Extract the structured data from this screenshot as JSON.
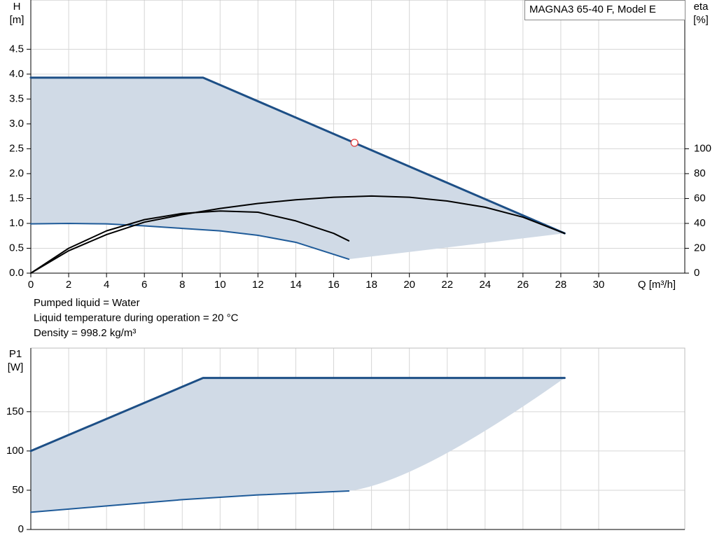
{
  "chart_data": [
    {
      "type": "line",
      "title": "MAGNA3 65-40 F, Model E",
      "ylabel": "H",
      "yunit": "[m]",
      "y2label": "eta",
      "y2unit": "[%]",
      "xlabel": "Q [m³/h]",
      "notes": [
        "Pumped liquid = Water",
        "Liquid temperature during operation = 20 °C",
        "Density = 998.2 kg/m³"
      ],
      "xlim": [
        0,
        34.55
      ],
      "xticks": [
        0,
        2,
        4,
        6,
        8,
        10,
        12,
        14,
        16,
        18,
        20,
        22,
        24,
        26,
        28,
        30
      ],
      "ylim": [
        0,
        5.49
      ],
      "yticks": [
        {
          "value": 0,
          "label": "0.0"
        },
        0.5,
        {
          "value": 1,
          "label": "1.0"
        },
        1.5,
        {
          "value": 2,
          "label": "2.0"
        },
        2.5,
        {
          "value": 3,
          "label": "3.0"
        },
        3.5,
        {
          "value": 4,
          "label": "4.0"
        },
        4.5
      ],
      "y2lim": [
        0,
        219.6
      ],
      "y2ticks": [
        0,
        20,
        40,
        60,
        80,
        100
      ],
      "grid": true,
      "fill": "#d0dae6",
      "fill_between": [
        0,
        1
      ],
      "fill_edge": "straight",
      "series": [
        {
          "color": "#1d4f86",
          "width": 3,
          "x": [
            0,
            9.1,
            28.2
          ],
          "values": [
            3.93,
            3.93,
            0.8
          ]
        },
        {
          "color": "#1f5b99",
          "width": 2,
          "x": [
            0,
            2,
            4,
            6,
            8,
            10,
            12,
            14,
            16.8
          ],
          "values": [
            0.99,
            1.0,
            0.99,
            0.95,
            0.9,
            0.85,
            0.76,
            0.62,
            0.28
          ]
        },
        {
          "color": "#000000",
          "width": 2,
          "axis": "y2",
          "x": [
            0,
            2,
            4,
            6,
            8,
            10,
            12,
            14,
            16,
            18,
            20,
            22,
            24,
            26,
            28.2
          ],
          "values": [
            0,
            18,
            31,
            41,
            47,
            52,
            56,
            59,
            61,
            62,
            61,
            58,
            53,
            45,
            32
          ]
        },
        {
          "color": "#000000",
          "width": 2,
          "axis": "y2",
          "x": [
            0,
            2,
            4,
            6,
            8,
            10,
            12,
            14,
            16,
            16.8
          ],
          "values": [
            0,
            20,
            34,
            43,
            48,
            50,
            49,
            42,
            32,
            26
          ]
        }
      ],
      "operating_point": {
        "x": 17.1,
        "value": 2.62,
        "color": "#e03a3a"
      }
    },
    {
      "type": "line",
      "ylabel": "P1",
      "yunit": "[W]",
      "xlim": [
        0,
        34.55
      ],
      "ylim": [
        0,
        231
      ],
      "yticks": [
        0,
        50,
        100,
        150
      ],
      "grid": true,
      "fill": "#d0dae6",
      "fill_between": [
        0,
        1
      ],
      "fill_edge": "curve",
      "series": [
        {
          "color": "#1d4f86",
          "width": 3,
          "x": [
            0,
            9.1,
            28.2
          ],
          "values": [
            100,
            193,
            193
          ]
        },
        {
          "color": "#1f5b99",
          "width": 2,
          "x": [
            0,
            4,
            8,
            12,
            16.8
          ],
          "values": [
            22,
            30,
            38,
            44,
            49
          ]
        }
      ]
    }
  ]
}
